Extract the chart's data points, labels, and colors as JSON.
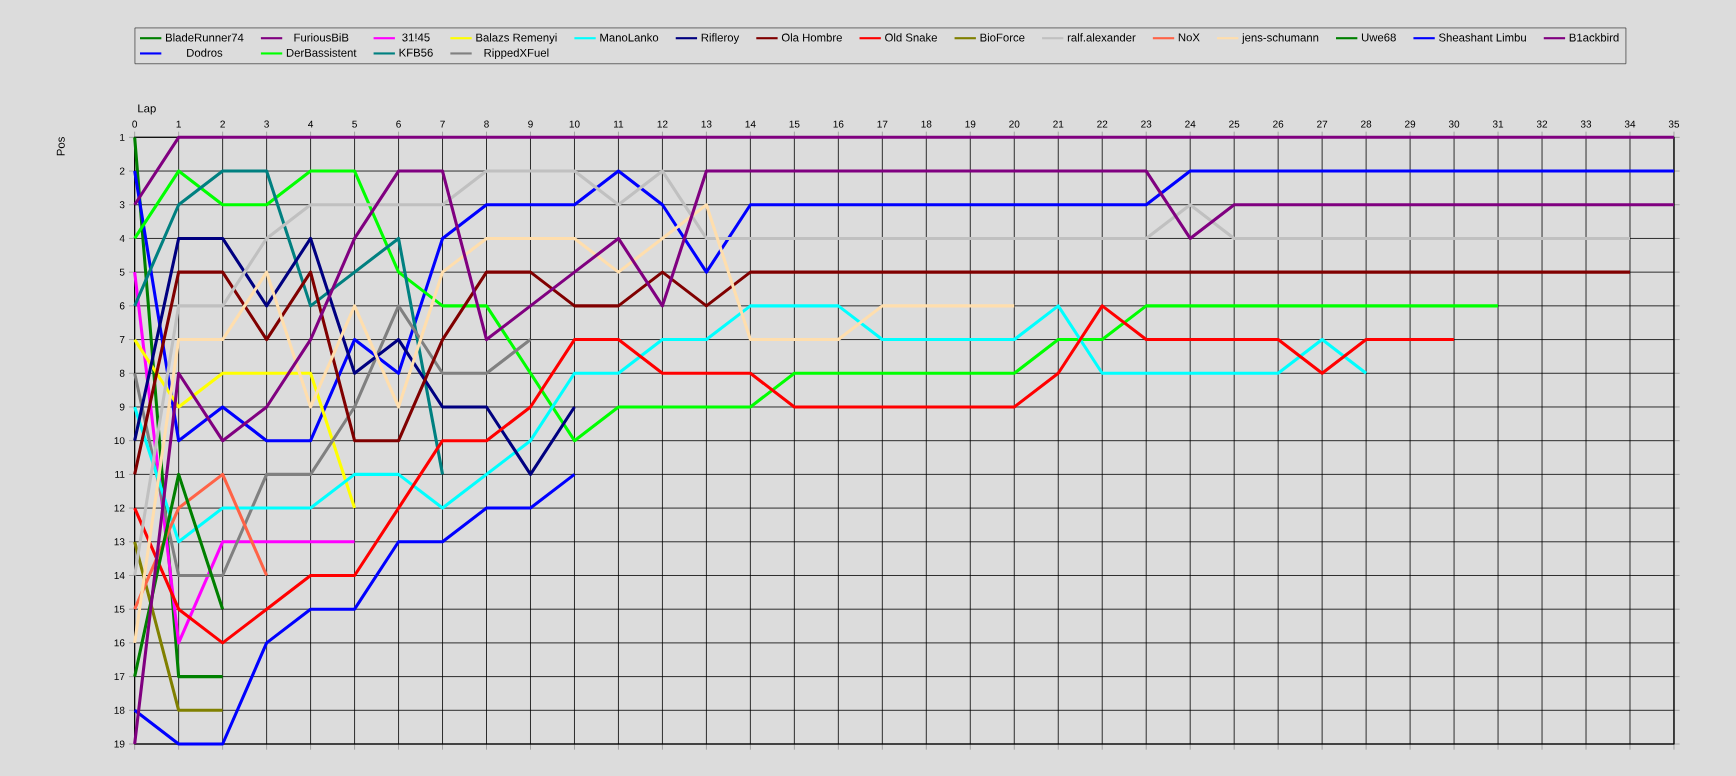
{
  "chart_data": {
    "type": "line",
    "xlabel": "Lap",
    "ylabel": "Pos",
    "x": [
      0,
      1,
      2,
      3,
      4,
      5,
      6,
      7,
      8,
      9,
      10,
      11,
      12,
      13,
      14,
      15,
      16,
      17,
      18,
      19,
      20,
      21,
      22,
      23,
      24,
      25,
      26,
      27,
      28,
      29,
      30,
      31,
      32,
      33,
      34,
      35
    ],
    "xlim": [
      0,
      35
    ],
    "xticks": [
      0,
      1,
      2,
      3,
      4,
      5,
      6,
      7,
      8,
      9,
      10,
      11,
      12,
      13,
      14,
      15,
      16,
      17,
      18,
      19,
      20,
      21,
      22,
      23,
      24,
      25,
      26,
      27,
      28,
      29,
      30,
      31,
      32,
      33,
      34,
      35
    ],
    "ylim": [
      19,
      1
    ],
    "yticks": [
      1,
      2,
      3,
      4,
      5,
      6,
      7,
      8,
      9,
      10,
      11,
      12,
      13,
      14,
      15,
      16,
      17,
      18,
      19
    ],
    "grid": true,
    "legend": "top",
    "series": [
      {
        "name": "BladeRunner74",
        "color": "#008000",
        "values": [
          1,
          17,
          17,
          null,
          null,
          null,
          null,
          null,
          null,
          null,
          null,
          null,
          null,
          null,
          null,
          null,
          null,
          null,
          null,
          null,
          null,
          null,
          null,
          null,
          null,
          null,
          null,
          null,
          null,
          null,
          null,
          null,
          null,
          null,
          null,
          null
        ]
      },
      {
        "name": "Dodros",
        "color": "#0000FF",
        "values": [
          2,
          10,
          9,
          10,
          10,
          7,
          8,
          4,
          3,
          3,
          3,
          2,
          3,
          5,
          3,
          3,
          3,
          3,
          3,
          3,
          3,
          3,
          3,
          3,
          2,
          2,
          2,
          2,
          2,
          2,
          2,
          2,
          2,
          2,
          2,
          2
        ]
      },
      {
        "name": "FuriousBiB",
        "color": "#800080",
        "values": [
          3,
          1,
          1,
          1,
          1,
          1,
          1,
          1,
          1,
          1,
          1,
          1,
          1,
          1,
          1,
          1,
          1,
          1,
          1,
          1,
          1,
          1,
          1,
          1,
          1,
          1,
          1,
          1,
          1,
          1,
          1,
          1,
          1,
          1,
          1,
          1
        ]
      },
      {
        "name": "DerBassistent",
        "color": "#00FF00",
        "values": [
          4,
          2,
          3,
          3,
          2,
          2,
          5,
          6,
          6,
          8,
          10,
          9,
          9,
          9,
          9,
          8,
          8,
          8,
          8,
          8,
          8,
          7,
          7,
          6,
          6,
          6,
          6,
          6,
          6,
          6,
          6,
          6,
          null,
          null,
          null,
          null
        ]
      },
      {
        "name": "31!45",
        "color": "#FF00FF",
        "values": [
          5,
          16,
          13,
          13,
          13,
          13,
          null,
          null,
          null,
          null,
          null,
          null,
          null,
          null,
          null,
          null,
          null,
          null,
          null,
          null,
          null,
          null,
          null,
          null,
          null,
          null,
          null,
          null,
          null,
          null,
          null,
          null,
          null,
          null,
          null,
          null
        ]
      },
      {
        "name": "KFB56",
        "color": "#008080",
        "values": [
          6,
          3,
          2,
          2,
          6,
          5,
          4,
          11,
          null,
          null,
          null,
          null,
          null,
          null,
          null,
          null,
          null,
          null,
          null,
          null,
          null,
          null,
          null,
          null,
          null,
          null,
          null,
          null,
          null,
          null,
          null,
          null,
          null,
          null,
          null,
          null
        ]
      },
      {
        "name": "Balazs Remenyi",
        "color": "#FFFF00",
        "values": [
          7,
          9,
          8,
          8,
          8,
          12,
          null,
          null,
          null,
          null,
          null,
          null,
          null,
          null,
          null,
          null,
          null,
          null,
          null,
          null,
          null,
          null,
          null,
          null,
          null,
          null,
          null,
          null,
          null,
          null,
          null,
          null,
          null,
          null,
          null,
          null
        ]
      },
      {
        "name": "RippedXFuel",
        "color": "#808080",
        "values": [
          8,
          14,
          14,
          11,
          11,
          9,
          6,
          8,
          8,
          7,
          null,
          null,
          null,
          null,
          null,
          null,
          null,
          null,
          null,
          null,
          null,
          null,
          null,
          null,
          null,
          null,
          null,
          null,
          null,
          null,
          null,
          null,
          null,
          null,
          null,
          null
        ]
      },
      {
        "name": "ManoLanko",
        "color": "#00FFFF",
        "values": [
          9,
          13,
          12,
          12,
          12,
          11,
          11,
          12,
          11,
          10,
          8,
          8,
          7,
          7,
          6,
          6,
          6,
          7,
          7,
          7,
          7,
          6,
          8,
          8,
          8,
          8,
          8,
          7,
          8,
          null,
          null,
          null,
          null,
          null,
          null,
          null
        ]
      },
      {
        "name": "Rifleroy",
        "color": "#000080",
        "values": [
          10,
          4,
          4,
          6,
          4,
          8,
          7,
          9,
          9,
          11,
          9,
          null,
          null,
          null,
          null,
          null,
          null,
          null,
          null,
          null,
          null,
          null,
          null,
          null,
          null,
          null,
          null,
          null,
          null,
          null,
          null,
          null,
          null,
          null,
          null,
          null
        ]
      },
      {
        "name": "Ola Hombre",
        "color": "#800000",
        "values": [
          11,
          5,
          5,
          7,
          5,
          10,
          10,
          7,
          5,
          5,
          6,
          6,
          5,
          6,
          5,
          5,
          5,
          5,
          5,
          5,
          5,
          5,
          5,
          5,
          5,
          5,
          5,
          5,
          5,
          5,
          5,
          5,
          5,
          5,
          5,
          null
        ]
      },
      {
        "name": "Old Snake",
        "color": "#FF0000",
        "values": [
          12,
          15,
          16,
          15,
          14,
          14,
          12,
          10,
          10,
          9,
          7,
          7,
          8,
          8,
          8,
          9,
          9,
          9,
          9,
          9,
          9,
          8,
          6,
          7,
          7,
          7,
          7,
          8,
          7,
          7,
          7,
          null,
          null,
          null,
          null,
          null
        ]
      },
      {
        "name": "BioForce",
        "color": "#808000",
        "values": [
          13,
          18,
          18,
          null,
          null,
          null,
          null,
          null,
          null,
          null,
          null,
          null,
          null,
          null,
          null,
          null,
          null,
          null,
          null,
          null,
          null,
          null,
          null,
          null,
          null,
          null,
          null,
          null,
          null,
          null,
          null,
          null,
          null,
          null,
          null,
          null
        ]
      },
      {
        "name": "ralf.alexander",
        "color": "#C0C0C0",
        "values": [
          14,
          6,
          6,
          4,
          3,
          3,
          3,
          3,
          2,
          2,
          2,
          3,
          2,
          4,
          4,
          4,
          4,
          4,
          4,
          4,
          4,
          4,
          4,
          4,
          3,
          4,
          4,
          4,
          4,
          4,
          4,
          4,
          4,
          4,
          4,
          null
        ]
      },
      {
        "name": "NoX",
        "color": "#FF6347",
        "values": [
          15,
          12,
          11,
          14,
          null,
          null,
          null,
          null,
          null,
          null,
          null,
          null,
          null,
          null,
          null,
          null,
          null,
          null,
          null,
          null,
          null,
          null,
          null,
          null,
          null,
          null,
          null,
          null,
          null,
          null,
          null,
          null,
          null,
          null,
          null,
          null
        ]
      },
      {
        "name": "jens-schumann",
        "color": "#FFDEAD",
        "values": [
          16,
          7,
          7,
          5,
          9,
          6,
          9,
          5,
          4,
          4,
          4,
          5,
          4,
          3,
          7,
          7,
          7,
          6,
          6,
          6,
          6,
          null,
          null,
          null,
          null,
          null,
          null,
          null,
          null,
          null,
          null,
          null,
          null,
          null,
          null,
          null
        ]
      },
      {
        "name": "Uwe68",
        "color": "#008000",
        "values": [
          17,
          11,
          15,
          null,
          null,
          null,
          null,
          null,
          null,
          null,
          null,
          null,
          null,
          null,
          null,
          null,
          null,
          null,
          null,
          null,
          null,
          null,
          null,
          null,
          null,
          null,
          null,
          null,
          null,
          null,
          null,
          null,
          null,
          null,
          null,
          null
        ]
      },
      {
        "name": "Sheashant Limbu",
        "color": "#0000FF",
        "values": [
          18,
          19,
          19,
          16,
          15,
          15,
          13,
          13,
          12,
          12,
          11,
          null,
          null,
          null,
          null,
          null,
          null,
          null,
          null,
          null,
          null,
          null,
          null,
          null,
          null,
          null,
          null,
          null,
          null,
          null,
          null,
          null,
          null,
          null,
          null,
          null
        ]
      },
      {
        "name": "B1ackbird",
        "color": "#800080",
        "values": [
          19,
          8,
          10,
          9,
          7,
          4,
          2,
          2,
          7,
          6,
          5,
          4,
          6,
          2,
          2,
          2,
          2,
          2,
          2,
          2,
          2,
          2,
          2,
          2,
          4,
          3,
          3,
          3,
          3,
          3,
          3,
          3,
          3,
          3,
          3,
          3
        ]
      }
    ]
  }
}
